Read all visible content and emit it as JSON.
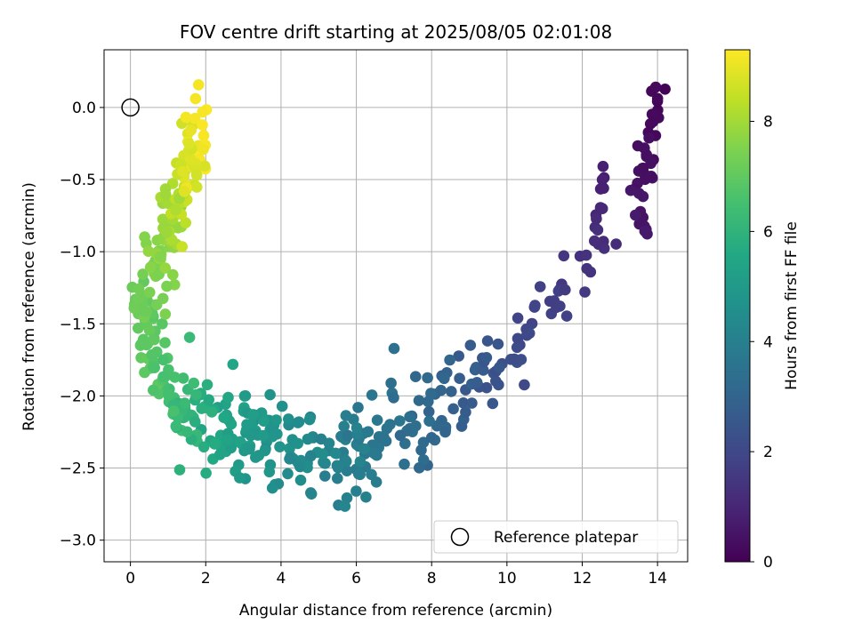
{
  "chart_data": {
    "type": "scatter",
    "title": "FOV centre drift starting at 2025/08/05 02:01:08",
    "xlabel": "Angular distance from reference (arcmin)",
    "ylabel": "Rotation from reference (arcmin)",
    "xlim": [
      -0.7,
      14.8
    ],
    "ylim": [
      -3.15,
      0.4
    ],
    "xticks": [
      0,
      2,
      4,
      6,
      8,
      10,
      12,
      14
    ],
    "yticks": [
      0.0,
      -0.5,
      -1.0,
      -1.5,
      -2.0,
      -2.5,
      -3.0
    ],
    "grid": true,
    "legend": {
      "position": "lower-right",
      "label": "Reference platepar"
    },
    "reference_point": {
      "x": 0,
      "y": 0
    },
    "colorbar": {
      "label": "Hours from first FF file",
      "colormap": "viridis",
      "range": [
        0,
        9.3
      ],
      "ticks": [
        0,
        2,
        4,
        6,
        8
      ]
    },
    "segments": [
      {
        "from": [
          14.1,
          0.2
        ],
        "to": [
          13.4,
          -0.9
        ],
        "h": [
          0.0,
          0.7
        ],
        "n": 40,
        "sx": 0.28,
        "sy": 0.22
      },
      {
        "from": [
          12.6,
          -0.3
        ],
        "to": [
          12.4,
          -0.9
        ],
        "h": [
          0.7,
          1.2
        ],
        "n": 12,
        "sx": 0.15,
        "sy": 0.15
      },
      {
        "from": [
          12.4,
          -0.9
        ],
        "to": [
          10.5,
          -1.6
        ],
        "h": [
          1.2,
          2.0
        ],
        "n": 28,
        "sx": 0.4,
        "sy": 0.13
      },
      {
        "from": [
          10.5,
          -1.6
        ],
        "to": [
          8.3,
          -2.1
        ],
        "h": [
          2.0,
          3.0
        ],
        "n": 45,
        "sx": 0.45,
        "sy": 0.22
      },
      {
        "from": [
          8.3,
          -2.1
        ],
        "to": [
          5.7,
          -2.45
        ],
        "h": [
          3.0,
          4.0
        ],
        "n": 75,
        "sx": 0.55,
        "sy": 0.26
      },
      {
        "from": [
          5.7,
          -2.45
        ],
        "to": [
          3.6,
          -2.3
        ],
        "h": [
          4.0,
          4.8
        ],
        "n": 65,
        "sx": 0.55,
        "sy": 0.24
      },
      {
        "from": [
          3.6,
          -2.3
        ],
        "to": [
          2.2,
          -2.2
        ],
        "h": [
          4.8,
          5.6
        ],
        "n": 60,
        "sx": 0.5,
        "sy": 0.24
      },
      {
        "from": [
          2.2,
          -2.2
        ],
        "to": [
          1.0,
          -2.0
        ],
        "h": [
          5.6,
          6.5
        ],
        "n": 45,
        "sx": 0.35,
        "sy": 0.25
      },
      {
        "from": [
          1.0,
          -2.0
        ],
        "to": [
          0.3,
          -1.4
        ],
        "h": [
          6.5,
          7.2
        ],
        "n": 45,
        "sx": 0.28,
        "sy": 0.22
      },
      {
        "from": [
          0.3,
          -1.4
        ],
        "to": [
          1.0,
          -0.8
        ],
        "h": [
          7.2,
          7.9
        ],
        "n": 55,
        "sx": 0.3,
        "sy": 0.22
      },
      {
        "from": [
          1.0,
          -0.8
        ],
        "to": [
          1.9,
          -0.1
        ],
        "h": [
          7.9,
          9.3
        ],
        "n": 70,
        "sx": 0.28,
        "sy": 0.28
      }
    ]
  }
}
